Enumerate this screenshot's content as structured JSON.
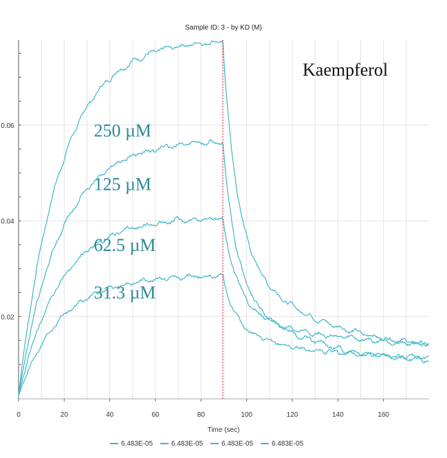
{
  "chart_data": {
    "type": "line",
    "title": "Sample ID: 3 - by KD (M)",
    "xlabel": "Time (sec)",
    "ylabel": "",
    "xlim": [
      0,
      180
    ],
    "ylim": [
      0.0028,
      0.0778
    ],
    "x_ticks": [
      0,
      20,
      40,
      60,
      80,
      100,
      120,
      140,
      160
    ],
    "y_ticks": [
      0.02,
      0.04,
      0.06
    ],
    "y_tick_labels": [
      "0.02",
      "0.04",
      "0.06"
    ],
    "grid": true,
    "marker_line": {
      "x": 89.5,
      "color": "#e03030"
    },
    "annotation": "Kaempferol",
    "series_color": "#3fb5c8",
    "label_color": "#2a8a98",
    "series": [
      {
        "label": "250 µM",
        "peak": 0.0775,
        "end_value": 0.0125,
        "noise": 0.0009
      },
      {
        "label": "125 µM",
        "peak": 0.0565,
        "end_value": 0.0095,
        "noise": 0.0009
      },
      {
        "label": "62.5 µM",
        "peak": 0.0405,
        "end_value": 0.0135,
        "noise": 0.0009
      },
      {
        "label": "31.3 µM",
        "peak": 0.0285,
        "end_value": 0.011,
        "noise": 0.0008
      }
    ],
    "legend_position": "bottom",
    "legend": [
      "6.483E-05",
      "6.483E-05",
      "6.483E-05",
      "6.483E-05"
    ]
  }
}
